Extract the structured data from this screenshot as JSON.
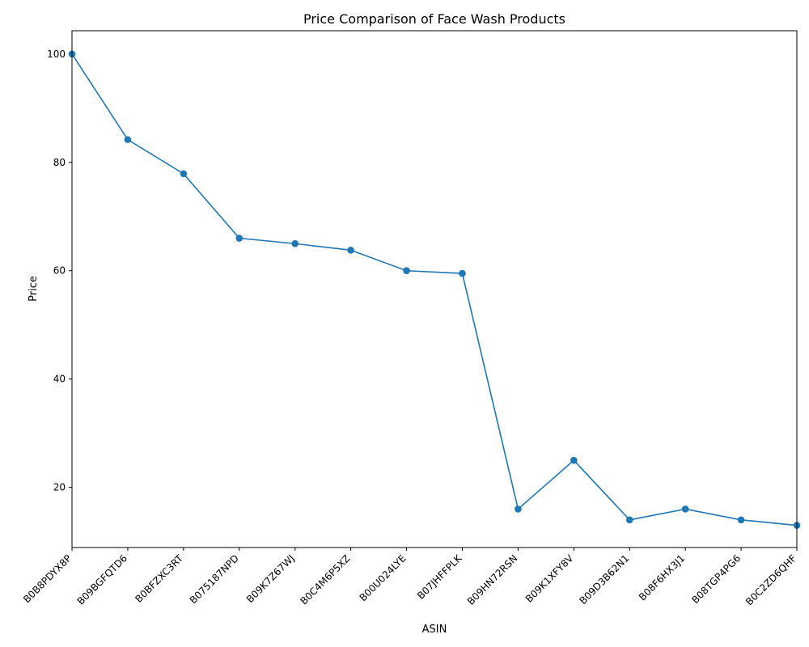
{
  "chart_data": {
    "type": "line",
    "title": "Price Comparison of Face Wash Products",
    "xlabel": "ASIN",
    "ylabel": "Price",
    "categories": [
      "B0B8PDYX8P",
      "B09BGFQTD6",
      "B0BFZXC3RT",
      "B075187NPD",
      "B09K7Z67WJ",
      "B0C4M6P5XZ",
      "B00U024LYE",
      "B07JHFFPLK",
      "B09HN72RSN",
      "B09K1XFY8V",
      "B09D3B62N1",
      "B08F6HX3J1",
      "B08TGP4PG6",
      "B0C2ZD6QHF"
    ],
    "values": [
      100.0,
      84.2,
      77.9,
      66.0,
      65.0,
      63.8,
      60.0,
      59.5,
      16.0,
      25.0,
      14.0,
      16.0,
      14.0,
      13.0
    ],
    "ylim": [
      8.9,
      104.3
    ],
    "yticks": [
      20,
      40,
      60,
      80,
      100
    ],
    "grid": false,
    "colors": {
      "line": "#1f77b4"
    }
  }
}
